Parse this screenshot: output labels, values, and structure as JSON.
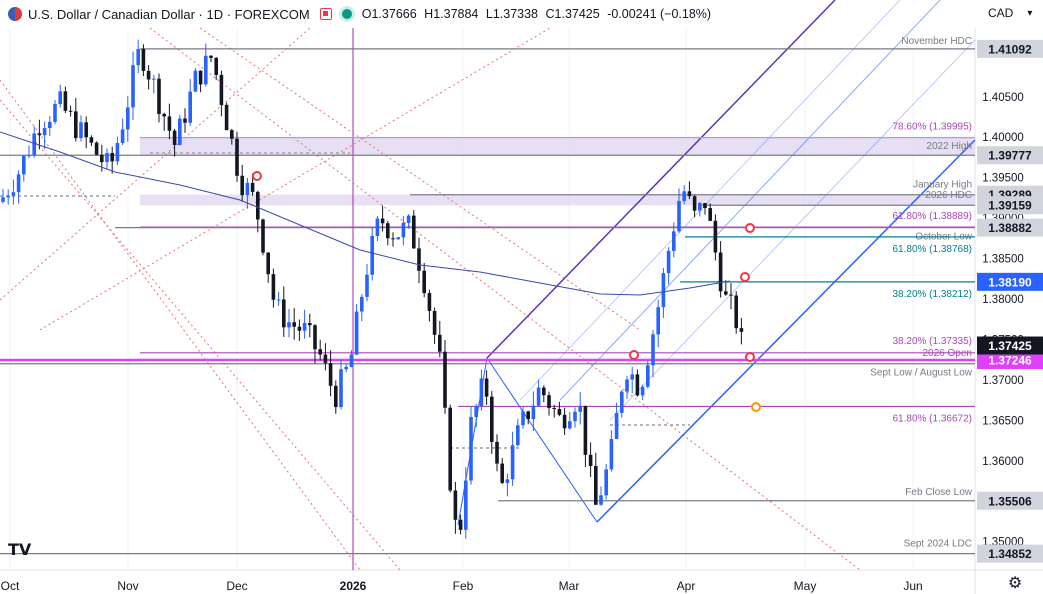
{
  "header": {
    "title": "U.S. Dollar / Canadian Dollar · 1D · FOREXCOM",
    "open_label": "O",
    "open": "1.37666",
    "high_label": "H",
    "high": "1.37884",
    "low_label": "L",
    "low": "1.37338",
    "close_label": "C",
    "close": "1.37425",
    "change": "-0.00241 (−0.18%)"
  },
  "currency_selector": "CAD",
  "chart_data": {
    "type": "candlestick",
    "y_range": [
      1.3465,
      1.4135
    ],
    "y_ticks": [
      "1.35000",
      "1.35500",
      "1.36000",
      "1.36500",
      "1.37000",
      "1.37500",
      "1.38000",
      "1.38500",
      "1.39000",
      "1.39500",
      "1.40000",
      "1.40500"
    ],
    "x_ticks": [
      "Oct",
      "Nov",
      "Dec",
      "2026",
      "Feb",
      "Mar",
      "Apr",
      "May",
      "Jun"
    ],
    "horizontal_levels": [
      {
        "label": "November HDC",
        "price": 1.41092,
        "tag": "1.41092",
        "color": "#787b86",
        "tag_bg": "#d1d4dc",
        "tag_color": "#131722"
      },
      {
        "label": "78.60% (1.39995)",
        "price": 1.39995,
        "color": "#b39ddb",
        "label_color": "#ab47bc"
      },
      {
        "label": "2022 High",
        "price": 1.39777,
        "tag": "1.39777",
        "color": "#787b86",
        "tag_bg": "#d1d4dc",
        "tag_color": "#131722"
      },
      {
        "label": "January High",
        "price": 1.39289,
        "tag": "1.39289",
        "color": "#787b86",
        "tag_bg": "#d1d4dc",
        "tag_color": "#131722"
      },
      {
        "label": "2026 HDC",
        "price": 1.39159,
        "tag": "1.39159",
        "color": "#787b86",
        "tag_bg": "#d1d4dc",
        "tag_color": "#131722"
      },
      {
        "label": "61.80% (1.38889)",
        "price": 1.38889,
        "color": "#ab47bc",
        "label_color": "#ab47bc"
      },
      {
        "label": "October Low",
        "price": 1.38882,
        "tag": "1.38882",
        "color": "#787b86",
        "tag_bg": "#d1d4dc",
        "tag_color": "#131722"
      },
      {
        "label": "61.80% (1.38768)",
        "price": 1.38768,
        "color": "#00838f",
        "label_color": "#00838f"
      },
      {
        "label": "38.20% (1.38212)",
        "price": 1.38212,
        "tag": "1.38190",
        "color": "#00838f",
        "tag_bg": "#2962ff",
        "tag_color": "#ffffff",
        "label_color": "#00838f"
      },
      {
        "label": "38.20% (1.37335)",
        "price": 1.37335,
        "color": "#ab47bc",
        "label_color": "#ab47bc"
      },
      {
        "label": "2026 Open",
        "price": 1.37246,
        "tag": "1.37246",
        "color": "#e040fb",
        "tag_bg": "#e040fb",
        "tag_color": "#ffffff",
        "label_color": "#ab47bc"
      },
      {
        "label": "Sept Low / August Low",
        "price": 1.372,
        "color": "#787b86",
        "label_color": "#787b86"
      },
      {
        "label": "61.80% (1.36672)",
        "price": 1.36672,
        "color": "#ab47bc",
        "label_color": "#ab47bc"
      },
      {
        "label": "Feb Close Low",
        "price": 1.35506,
        "tag": "1.35506",
        "color": "#787b86",
        "tag_bg": "#d1d4dc",
        "tag_color": "#131722"
      },
      {
        "label": "Sept 2024 LDC",
        "price": 1.34852,
        "tag": "1.34852",
        "color": "#787b86",
        "tag_bg": "#d1d4dc",
        "tag_color": "#131722"
      }
    ],
    "last_price": {
      "price": 1.37425,
      "tag": "1.37425",
      "tag_bg": "#131722",
      "tag_color": "#ffffff"
    },
    "zones": [
      {
        "from": 1.39777,
        "to": 1.40005,
        "color": "#e1d7f0"
      },
      {
        "from": 1.39159,
        "to": 1.39289,
        "color": "#e1d7f0"
      }
    ],
    "series": {
      "up_color": "#2962ff",
      "down_color": "#131722",
      "ma_color": "#3949ab",
      "fork_color": "#2962ff",
      "diag_color": "#e57373"
    }
  },
  "tv_logo": "TV"
}
